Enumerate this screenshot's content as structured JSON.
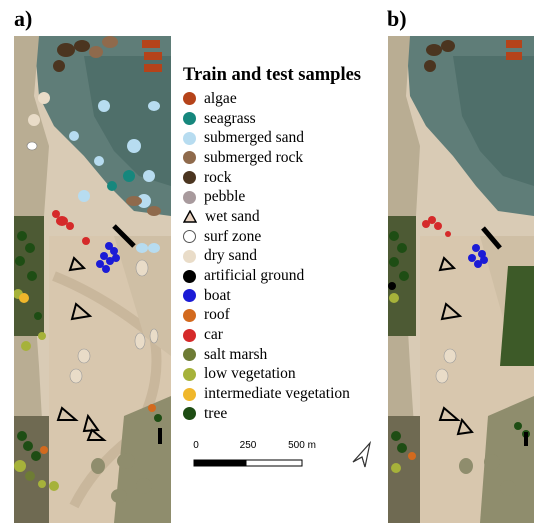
{
  "panels": {
    "a": "a)",
    "b": "b)"
  },
  "legend": {
    "title": "Train and test samples",
    "items": [
      {
        "label": "algae",
        "color": "#b5431a",
        "shape": "circle"
      },
      {
        "label": "seagrass",
        "color": "#16877d",
        "shape": "circle"
      },
      {
        "label": "submerged sand",
        "color": "#b7dcf0",
        "shape": "circle"
      },
      {
        "label": "submerged rock",
        "color": "#8f6a4c",
        "shape": "circle"
      },
      {
        "label": "rock",
        "color": "#4b3520",
        "shape": "circle"
      },
      {
        "label": "pebble",
        "color": "#a89a9d",
        "shape": "circle"
      },
      {
        "label": "wet sand",
        "color": "#e8d2c0",
        "shape": "triangle"
      },
      {
        "label": "surf zone",
        "color": "#ffffff",
        "shape": "circle"
      },
      {
        "label": "dry sand",
        "color": "#e9dcc8",
        "shape": "circle"
      },
      {
        "label": "artificial ground",
        "color": "#000000",
        "shape": "circle"
      },
      {
        "label": "boat",
        "color": "#1b1bd6",
        "shape": "circle"
      },
      {
        "label": "roof",
        "color": "#d36a1e",
        "shape": "circle"
      },
      {
        "label": "car",
        "color": "#d52a2a",
        "shape": "circle"
      },
      {
        "label": "salt marsh",
        "color": "#6e7c35",
        "shape": "circle"
      },
      {
        "label": "low vegetation",
        "color": "#a6b23a",
        "shape": "circle"
      },
      {
        "label": "intermediate vegetation",
        "color": "#f0b72b",
        "shape": "circle"
      },
      {
        "label": "tree",
        "color": "#1e4d14",
        "shape": "circle"
      }
    ]
  },
  "scalebar": {
    "ticks": [
      "0",
      "250",
      "500 m"
    ]
  },
  "icons": {
    "north_arrow": "north-arrow-icon"
  }
}
